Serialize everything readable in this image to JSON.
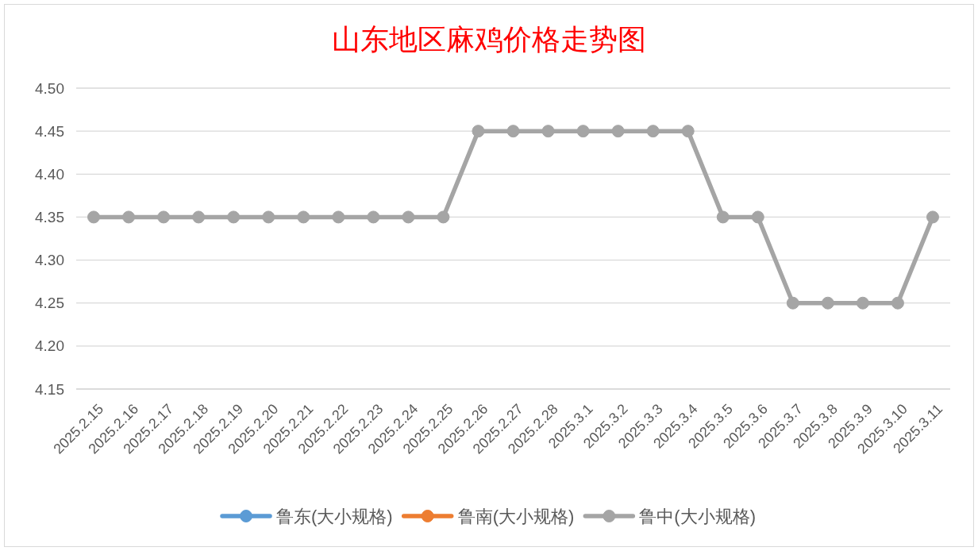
{
  "chart_data": {
    "type": "line",
    "title": "山东地区麻鸡价格走势图",
    "categories": [
      "2025.2.15",
      "2025.2.16",
      "2025.2.17",
      "2025.2.18",
      "2025.2.19",
      "2025.2.20",
      "2025.2.21",
      "2025.2.22",
      "2025.2.23",
      "2025.2.24",
      "2025.2.25",
      "2025.2.26",
      "2025.2.27",
      "2025.2.28",
      "2025.3.1",
      "2025.3.2",
      "2025.3.3",
      "2025.3.4",
      "2025.3.5",
      "2025.3.6",
      "2025.3.7",
      "2025.3.8",
      "2025.3.9",
      "2025.3.10",
      "2025.3.11"
    ],
    "series": [
      {
        "name": "鲁东(大小规格)",
        "color": "#5b9bd5",
        "values": [
          null,
          null,
          null,
          null,
          null,
          null,
          null,
          null,
          null,
          null,
          null,
          null,
          null,
          null,
          null,
          null,
          null,
          null,
          null,
          null,
          null,
          null,
          null,
          null,
          null
        ]
      },
      {
        "name": "鲁南(大小规格)",
        "color": "#ed7d31",
        "values": [
          null,
          null,
          null,
          null,
          null,
          null,
          null,
          null,
          null,
          null,
          null,
          null,
          null,
          null,
          null,
          null,
          null,
          null,
          null,
          null,
          null,
          null,
          null,
          null,
          null
        ]
      },
      {
        "name": "鲁中(大小规格)",
        "color": "#a5a5a5",
        "values": [
          4.35,
          4.35,
          4.35,
          4.35,
          4.35,
          4.35,
          4.35,
          4.35,
          4.35,
          4.35,
          4.35,
          4.45,
          4.45,
          4.45,
          4.45,
          4.45,
          4.45,
          4.45,
          4.35,
          4.35,
          4.25,
          4.25,
          4.25,
          4.25,
          4.35
        ]
      }
    ],
    "ylim": [
      4.15,
      4.5
    ],
    "yticks": [
      {
        "value": 4.15,
        "label": "4.15"
      },
      {
        "value": 4.2,
        "label": "4.20"
      },
      {
        "value": 4.25,
        "label": "4.25"
      },
      {
        "value": 4.3,
        "label": "4.30"
      },
      {
        "value": 4.35,
        "label": "4.35"
      },
      {
        "value": 4.4,
        "label": "4.40"
      },
      {
        "value": 4.45,
        "label": "4.45"
      },
      {
        "value": 4.5,
        "label": "4.50"
      }
    ],
    "grid": "y",
    "legend": "bottom",
    "marker": "circle",
    "line_style": "solid"
  }
}
